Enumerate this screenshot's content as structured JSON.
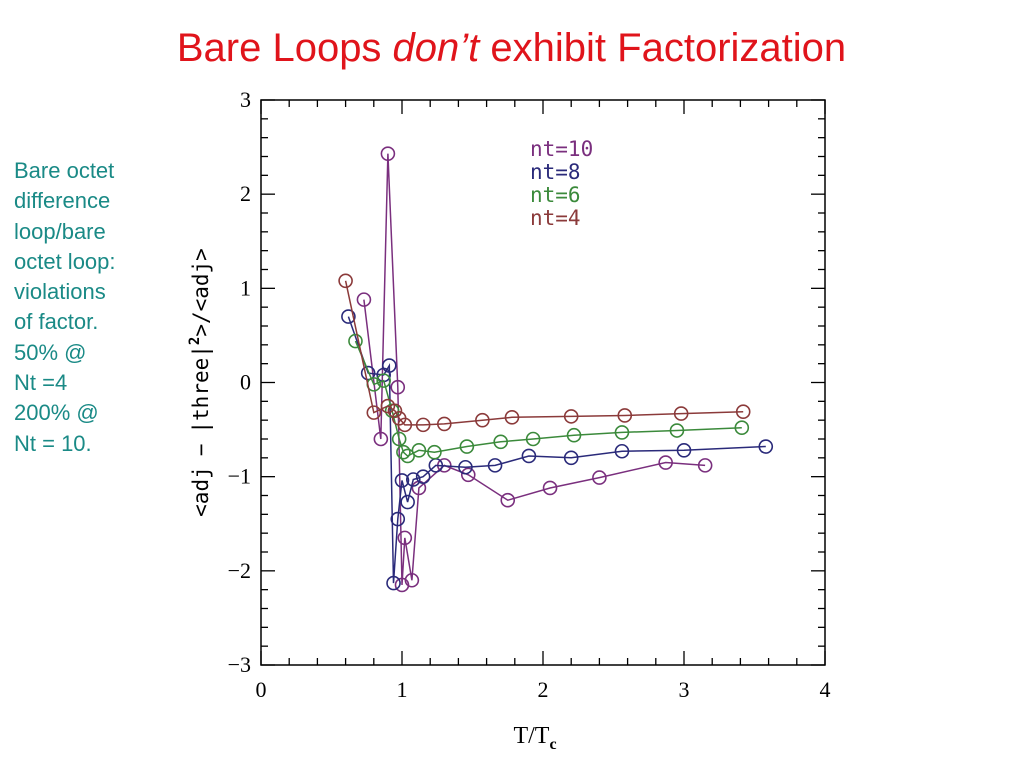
{
  "title": {
    "part1": "Bare Loops ",
    "part2": "don’t",
    "part3": " exhibit Factorization"
  },
  "side_note": {
    "lines": [
      "Bare octet",
      "difference",
      "loop/bare",
      "octet loop:",
      "violations",
      "of factor.",
      "50% @",
      "Nt =4",
      "200% @",
      "Nt = 10."
    ]
  },
  "colors": {
    "title": "#e0141b",
    "side_note": "#1a8a86",
    "axis": "#000000"
  },
  "chart_data": {
    "type": "line",
    "xlabel": "T/T",
    "xlabel_sub": "c",
    "ylabel_parts": [
      "<adj",
      "−",
      "|three|",
      "2",
      ">/<adj>"
    ],
    "xlim": [
      0,
      4
    ],
    "ylim": [
      -3,
      3
    ],
    "x_ticks": [
      "0",
      "1",
      "2",
      "3",
      "4"
    ],
    "y_ticks": [
      "−3",
      "−2",
      "−1",
      "0",
      "1",
      "2",
      "3"
    ],
    "grid": false,
    "legend_position": "top-right",
    "series": [
      {
        "name": "nt=10",
        "color": "#7a2f7e",
        "points": [
          [
            0.73,
            0.88
          ],
          [
            0.85,
            -0.6
          ],
          [
            0.9,
            2.43
          ],
          [
            0.97,
            -0.05
          ],
          [
            1.0,
            -2.15
          ],
          [
            1.02,
            -1.65
          ],
          [
            1.07,
            -2.1
          ],
          [
            1.12,
            -1.12
          ],
          [
            1.3,
            -0.88
          ],
          [
            1.47,
            -0.98
          ],
          [
            1.75,
            -1.25
          ],
          [
            2.05,
            -1.12
          ],
          [
            2.4,
            -1.01
          ],
          [
            2.87,
            -0.85
          ],
          [
            3.15,
            -0.88
          ]
        ]
      },
      {
        "name": "nt=8",
        "color": "#2a2a7a",
        "points": [
          [
            0.62,
            0.7
          ],
          [
            0.76,
            0.1
          ],
          [
            0.87,
            0.08
          ],
          [
            0.91,
            0.18
          ],
          [
            0.94,
            -2.13
          ],
          [
            0.97,
            -1.45
          ],
          [
            1.0,
            -1.04
          ],
          [
            1.04,
            -1.27
          ],
          [
            1.08,
            -1.03
          ],
          [
            1.15,
            -1.0
          ],
          [
            1.24,
            -0.88
          ],
          [
            1.45,
            -0.9
          ],
          [
            1.66,
            -0.88
          ],
          [
            1.9,
            -0.78
          ],
          [
            2.2,
            -0.8
          ],
          [
            2.56,
            -0.73
          ],
          [
            3.0,
            -0.72
          ],
          [
            3.58,
            -0.68
          ]
        ]
      },
      {
        "name": "nt=6",
        "color": "#3b8a3b",
        "points": [
          [
            0.67,
            0.44
          ],
          [
            0.8,
            -0.02
          ],
          [
            0.87,
            0.02
          ],
          [
            0.93,
            -0.3
          ],
          [
            0.98,
            -0.6
          ],
          [
            1.01,
            -0.74
          ],
          [
            1.04,
            -0.78
          ],
          [
            1.12,
            -0.72
          ],
          [
            1.23,
            -0.74
          ],
          [
            1.46,
            -0.68
          ],
          [
            1.7,
            -0.63
          ],
          [
            1.93,
            -0.6
          ],
          [
            2.22,
            -0.56
          ],
          [
            2.56,
            -0.53
          ],
          [
            2.95,
            -0.51
          ],
          [
            3.41,
            -0.48
          ]
        ]
      },
      {
        "name": "nt=4",
        "color": "#8b3a3a",
        "points": [
          [
            0.6,
            1.08
          ],
          [
            0.8,
            -0.32
          ],
          [
            0.9,
            -0.25
          ],
          [
            0.95,
            -0.3
          ],
          [
            0.98,
            -0.38
          ],
          [
            1.02,
            -0.45
          ],
          [
            1.15,
            -0.45
          ],
          [
            1.3,
            -0.44
          ],
          [
            1.57,
            -0.4
          ],
          [
            1.78,
            -0.37
          ],
          [
            2.2,
            -0.36
          ],
          [
            2.58,
            -0.35
          ],
          [
            2.98,
            -0.33
          ],
          [
            3.42,
            -0.31
          ]
        ]
      }
    ]
  }
}
